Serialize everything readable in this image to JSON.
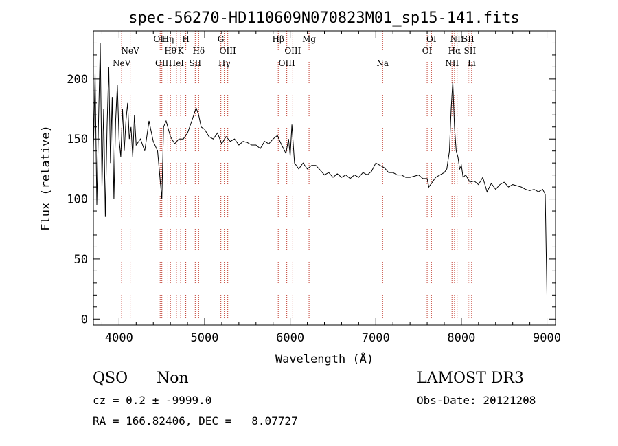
{
  "chart_data": {
    "type": "line",
    "title": "spec-56270-HD110609N070823M01_sp15-141.fits",
    "xlabel": "Wavelength (Å)",
    "ylabel": "Flux (relative)",
    "xlim": [
      3700,
      9100
    ],
    "ylim": [
      -5,
      240
    ],
    "xticks": [
      4000,
      5000,
      6000,
      7000,
      8000,
      9000
    ],
    "yticks": [
      0,
      50,
      100,
      150,
      200
    ],
    "grid": false,
    "series": [
      {
        "x": [
          3700,
          3720,
          3740,
          3760,
          3780,
          3800,
          3820,
          3840,
          3860,
          3880,
          3900,
          3920,
          3940,
          3960,
          3980,
          4000,
          4020,
          4040,
          4060,
          4080,
          4100,
          4120,
          4140,
          4160,
          4180,
          4200,
          4250,
          4300,
          4350,
          4400,
          4450,
          4500,
          4520,
          4550,
          4600,
          4650,
          4700,
          4750,
          4800,
          4850,
          4900,
          4930,
          4960,
          5000,
          5050,
          5100,
          5150,
          5200,
          5250,
          5300,
          5350,
          5400,
          5450,
          5500,
          5550,
          5600,
          5650,
          5700,
          5750,
          5800,
          5850,
          5880,
          5900,
          5950,
          5980,
          6000,
          6020,
          6050,
          6100,
          6150,
          6200,
          6250,
          6300,
          6350,
          6400,
          6450,
          6500,
          6550,
          6600,
          6650,
          6700,
          6750,
          6800,
          6850,
          6900,
          6950,
          7000,
          7050,
          7100,
          7150,
          7200,
          7250,
          7300,
          7350,
          7400,
          7450,
          7500,
          7550,
          7600,
          7620,
          7650,
          7700,
          7750,
          7800,
          7830,
          7860,
          7880,
          7900,
          7920,
          7940,
          7960,
          7980,
          8000,
          8020,
          8050,
          8100,
          8150,
          8200,
          8250,
          8300,
          8350,
          8400,
          8450,
          8500,
          8550,
          8600,
          8650,
          8700,
          8750,
          8800,
          8850,
          8900,
          8950,
          8980,
          9000
        ],
        "y": [
          140,
          205,
          95,
          165,
          230,
          110,
          175,
          85,
          160,
          210,
          130,
          185,
          100,
          165,
          195,
          150,
          135,
          175,
          140,
          165,
          180,
          150,
          160,
          135,
          170,
          145,
          150,
          140,
          165,
          148,
          140,
          100,
          160,
          165,
          152,
          146,
          150,
          150,
          155,
          165,
          176,
          170,
          160,
          158,
          152,
          150,
          155,
          146,
          152,
          148,
          150,
          145,
          148,
          147,
          145,
          145,
          142,
          148,
          146,
          150,
          153,
          148,
          145,
          138,
          150,
          136,
          162,
          130,
          125,
          130,
          125,
          128,
          128,
          124,
          120,
          122,
          118,
          121,
          118,
          120,
          117,
          120,
          118,
          122,
          120,
          123,
          130,
          128,
          126,
          122,
          122,
          120,
          120,
          118,
          118,
          119,
          120,
          117,
          117,
          110,
          113,
          118,
          120,
          122,
          125,
          140,
          175,
          198,
          160,
          140,
          135,
          125,
          128,
          118,
          120,
          114,
          115,
          112,
          118,
          106,
          113,
          108,
          112,
          114,
          110,
          112,
          111,
          110,
          108,
          107,
          108,
          106,
          108,
          104,
          20
        ]
      }
    ],
    "lines": [
      {
        "wavelength": 4030,
        "label": "NeV",
        "row": 2
      },
      {
        "wavelength": 4130,
        "label": "NeV",
        "row": 1
      },
      {
        "wavelength": 4480,
        "label": "OII",
        "row": 0
      },
      {
        "wavelength": 4500,
        "label": "OII",
        "row": 2
      },
      {
        "wavelength": 4570,
        "label": "Hη",
        "row": 0
      },
      {
        "wavelength": 4600,
        "label": "Hθ",
        "row": 1
      },
      {
        "wavelength": 4670,
        "label": "HeI",
        "row": 2
      },
      {
        "wavelength": 4720,
        "label": "K",
        "row": 1
      },
      {
        "wavelength": 4780,
        "label": "H",
        "row": 0
      },
      {
        "wavelength": 4890,
        "label": "SII",
        "row": 2
      },
      {
        "wavelength": 4930,
        "label": "Hδ",
        "row": 1
      },
      {
        "wavelength": 5190,
        "label": "G",
        "row": 0
      },
      {
        "wavelength": 5230,
        "label": "Hγ",
        "row": 2
      },
      {
        "wavelength": 5270,
        "label": "OIII",
        "row": 1
      },
      {
        "wavelength": 5860,
        "label": "Hβ",
        "row": 0
      },
      {
        "wavelength": 5960,
        "label": "OIII",
        "row": 2
      },
      {
        "wavelength": 6030,
        "label": "OIII",
        "row": 1
      },
      {
        "wavelength": 6220,
        "label": "Mg",
        "row": 0
      },
      {
        "wavelength": 7080,
        "label": "Na",
        "row": 2
      },
      {
        "wavelength": 7600,
        "label": "OI",
        "row": 1
      },
      {
        "wavelength": 7650,
        "label": "OI",
        "row": 0
      },
      {
        "wavelength": 7890,
        "label": "NII",
        "row": 2
      },
      {
        "wavelength": 7920,
        "label": "Hα",
        "row": 1
      },
      {
        "wavelength": 7950,
        "label": "NII",
        "row": 0
      },
      {
        "wavelength": 8080,
        "label": "SII",
        "row": 0
      },
      {
        "wavelength": 8100,
        "label": "SII",
        "row": 1
      },
      {
        "wavelength": 8120,
        "label": "Li",
        "row": 2
      }
    ]
  },
  "info": {
    "class": "QSO",
    "subclass": "Non",
    "survey": "LAMOST DR3",
    "cz": "cz = 0.2 ± -9999.0",
    "obs_date": "Obs-Date: 20121208",
    "radec": "RA = 166.82406, DEC =   8.07727"
  },
  "colors": {
    "axis": "#000000",
    "spectrum": "#000000",
    "line_markers": "#c0392b"
  }
}
